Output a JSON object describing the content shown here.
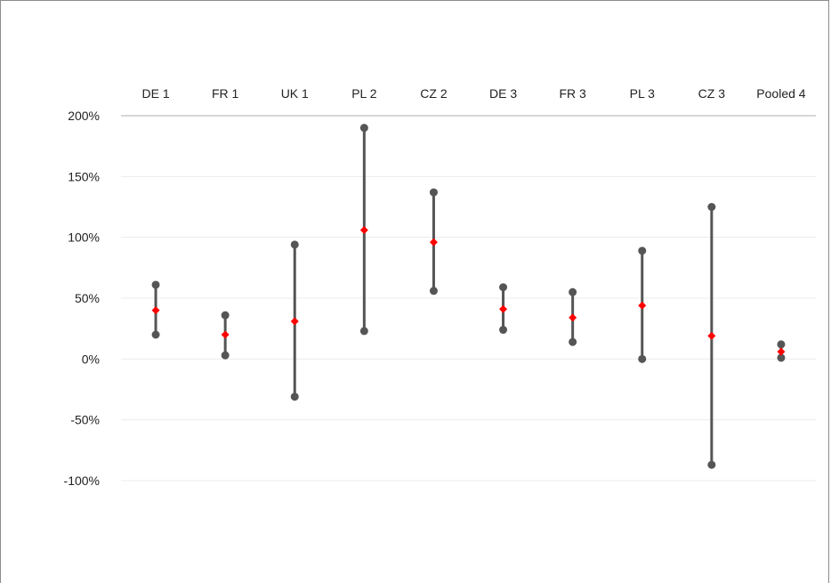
{
  "chart_data": {
    "type": "range",
    "categories": [
      "DE 1",
      "FR 1",
      "UK 1",
      "PL 2",
      "CZ 2",
      "DE 3",
      "FR 3",
      "PL 3",
      "CZ 3",
      "Pooled 4"
    ],
    "series": [
      {
        "values": [
          20,
          3,
          -31,
          23,
          56,
          24,
          14,
          0,
          -87,
          1
        ]
      },
      {
        "values": [
          40,
          20,
          31,
          106,
          96,
          41,
          34,
          44,
          19,
          6
        ]
      },
      {
        "values": [
          61,
          36,
          94,
          190,
          137,
          59,
          55,
          89,
          125,
          12
        ]
      }
    ],
    "y_ticks": [
      "200%",
      "150%",
      "100%",
      "50%",
      "0%",
      "-50%",
      "-100%"
    ],
    "ylim": [
      -100,
      200
    ],
    "y_unit": "%",
    "category_axis_position": "top",
    "grid": true,
    "legend": "none",
    "colors": {
      "range_line": "#555555",
      "end_points": "#555555",
      "mid_marker": "#ff0000",
      "gridline": "#ececec",
      "axis": "#bfbfbf"
    }
  }
}
